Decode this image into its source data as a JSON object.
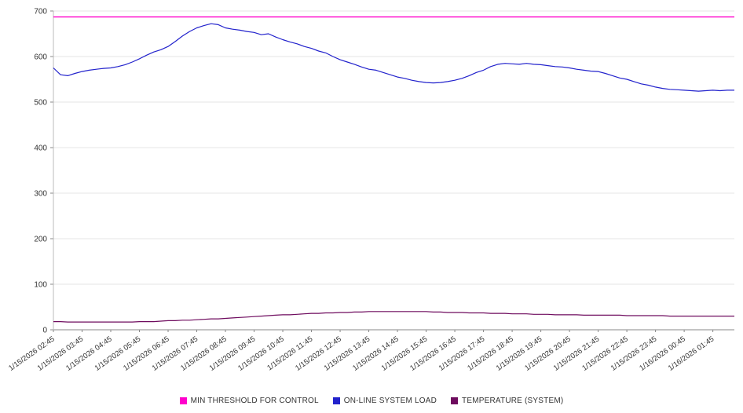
{
  "chart_data": {
    "type": "line",
    "title": "",
    "xlabel": "",
    "ylabel": "",
    "ylim": [
      0,
      700
    ],
    "ytick_step": 100,
    "grid": "horizontal",
    "legend_position": "bottom",
    "x_tick_rotation": -35,
    "points_per_category": 4,
    "categories": [
      "1/15/2026 02:45",
      "1/15/2026 03:45",
      "1/15/2026 04:45",
      "1/15/2026 05:45",
      "1/15/2026 06:45",
      "1/15/2026 07:45",
      "1/15/2026 08:45",
      "1/15/2026 09:45",
      "1/15/2026 10:45",
      "1/15/2026 11:45",
      "1/15/2026 12:45",
      "1/15/2026 13:45",
      "1/15/2026 14:45",
      "1/15/2026 15:45",
      "1/15/2026 16:45",
      "1/15/2026 17:45",
      "1/15/2026 18:45",
      "1/15/2026 19:45",
      "1/15/2026 20:45",
      "1/15/2026 21:45",
      "1/15/2026 22:45",
      "1/15/2026 23:45",
      "1/16/2026 00:45",
      "1/16/2026 01:45"
    ],
    "series": [
      {
        "name": "MIN THRESHOLD FOR CONTROL",
        "color": "#ff00cc",
        "constant": 687
      },
      {
        "name": "ON-LINE SYSTEM LOAD",
        "color": "#2222cc",
        "values": [
          575,
          560,
          558,
          563,
          567,
          570,
          572,
          574,
          575,
          578,
          582,
          588,
          595,
          603,
          610,
          615,
          622,
          633,
          645,
          655,
          663,
          668,
          672,
          670,
          663,
          660,
          658,
          655,
          653,
          648,
          650,
          643,
          637,
          632,
          628,
          622,
          618,
          612,
          608,
          600,
          593,
          588,
          583,
          577,
          572,
          570,
          565,
          560,
          555,
          552,
          548,
          545,
          543,
          542,
          543,
          545,
          548,
          552,
          558,
          565,
          570,
          578,
          583,
          585,
          584,
          583,
          585,
          583,
          582,
          580,
          578,
          577,
          575,
          572,
          570,
          568,
          567,
          563,
          558,
          553,
          550,
          545,
          540,
          537,
          533,
          530,
          528,
          527,
          526,
          525,
          524,
          525,
          526,
          525,
          526,
          526
        ]
      },
      {
        "name": "TEMPERATURE (SYSTEM)",
        "color": "#6e0b5e",
        "values": [
          18,
          18,
          17,
          17,
          17,
          17,
          17,
          17,
          17,
          17,
          17,
          17,
          18,
          18,
          18,
          19,
          20,
          20,
          21,
          21,
          22,
          23,
          24,
          24,
          25,
          26,
          27,
          28,
          29,
          30,
          31,
          32,
          33,
          33,
          34,
          35,
          36,
          36,
          37,
          37,
          38,
          38,
          39,
          39,
          40,
          40,
          40,
          40,
          40,
          40,
          40,
          40,
          40,
          39,
          39,
          38,
          38,
          38,
          37,
          37,
          37,
          36,
          36,
          36,
          35,
          35,
          35,
          34,
          34,
          34,
          33,
          33,
          33,
          33,
          32,
          32,
          32,
          32,
          32,
          32,
          31,
          31,
          31,
          31,
          31,
          31,
          30,
          30,
          30,
          30,
          30,
          30,
          30,
          30,
          30,
          30
        ]
      }
    ]
  }
}
